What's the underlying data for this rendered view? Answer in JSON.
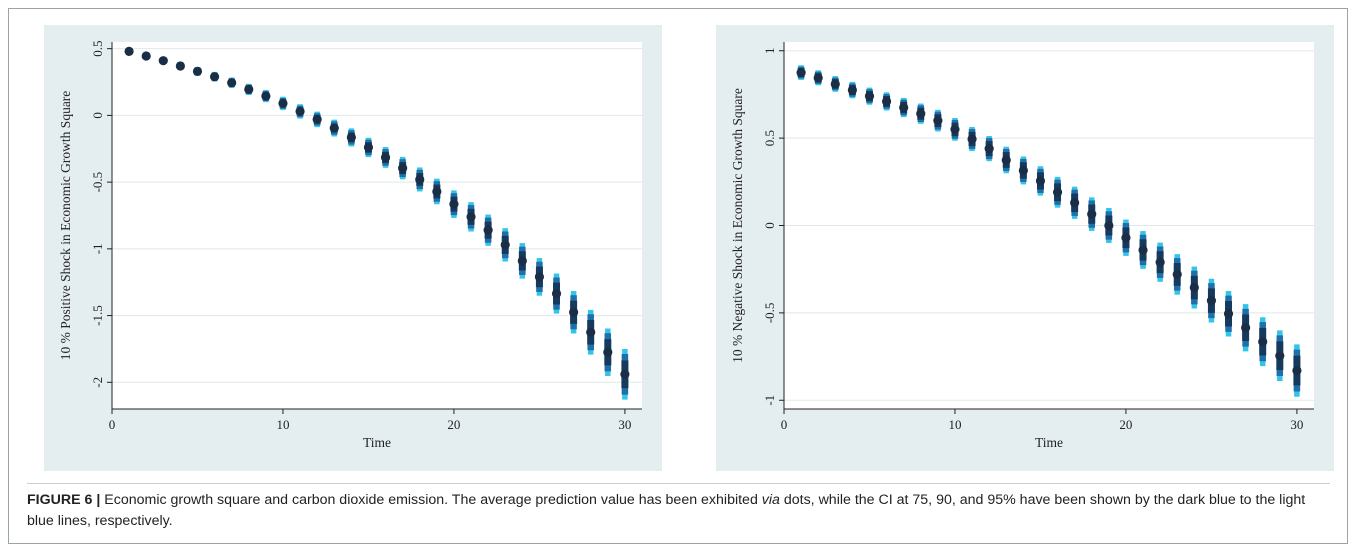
{
  "figure": {
    "label": "FIGURE 6 |",
    "caption_pre": " Economic growth square and carbon dioxide emission. The average prediction value has been exhibited ",
    "caption_italic": "via",
    "caption_post": " dots, while the CI at 75, 90, and 95% have been shown by the dark blue to the light blue lines, respectively."
  },
  "colors": {
    "panel_bg": "#e4eef0",
    "grid": "#ffffff",
    "point": "#1a2e47",
    "ci75": "#16395e",
    "ci90": "#1f6fa8",
    "ci95": "#32c5ea"
  },
  "chart_data": [
    {
      "type": "scatter",
      "title": "",
      "xlabel": "Time",
      "ylabel": "10 % Positive Shock in Economic Growth Square",
      "xlim": [
        0,
        31
      ],
      "ylim": [
        -2.2,
        0.55
      ],
      "xticks": [
        0,
        10,
        20,
        30
      ],
      "yticks": [
        0.5,
        0,
        -0.5,
        -1,
        -1.5,
        -2
      ],
      "ytick_labels": [
        "0.5",
        "0",
        "-0.5",
        "-1",
        "-1.5",
        "-2"
      ],
      "grid": "horizontal",
      "x": [
        1,
        2,
        3,
        4,
        5,
        6,
        7,
        8,
        9,
        10,
        11,
        12,
        13,
        14,
        15,
        16,
        17,
        18,
        19,
        20,
        21,
        22,
        23,
        24,
        25,
        26,
        27,
        28,
        29,
        30
      ],
      "mean": [
        0.48,
        0.445,
        0.41,
        0.37,
        0.33,
        0.29,
        0.245,
        0.195,
        0.145,
        0.09,
        0.03,
        -0.03,
        -0.095,
        -0.165,
        -0.24,
        -0.315,
        -0.395,
        -0.48,
        -0.57,
        -0.665,
        -0.76,
        -0.86,
        -0.97,
        -1.09,
        -1.21,
        -1.335,
        -1.475,
        -1.625,
        -1.775,
        -1.94
      ],
      "ci75": [
        0.015,
        0.015,
        0.016,
        0.017,
        0.018,
        0.019,
        0.021,
        0.023,
        0.025,
        0.027,
        0.029,
        0.031,
        0.033,
        0.036,
        0.039,
        0.042,
        0.045,
        0.048,
        0.052,
        0.056,
        0.06,
        0.064,
        0.068,
        0.072,
        0.077,
        0.082,
        0.087,
        0.092,
        0.098,
        0.104
      ],
      "ci90": [
        0.022,
        0.022,
        0.023,
        0.025,
        0.027,
        0.029,
        0.031,
        0.034,
        0.037,
        0.04,
        0.043,
        0.046,
        0.05,
        0.054,
        0.058,
        0.062,
        0.067,
        0.072,
        0.077,
        0.082,
        0.088,
        0.094,
        0.1,
        0.106,
        0.113,
        0.12,
        0.127,
        0.135,
        0.143,
        0.152
      ],
      "ci95": [
        0.027,
        0.027,
        0.028,
        0.03,
        0.033,
        0.036,
        0.039,
        0.042,
        0.046,
        0.05,
        0.054,
        0.058,
        0.063,
        0.068,
        0.073,
        0.078,
        0.084,
        0.09,
        0.096,
        0.103,
        0.11,
        0.117,
        0.125,
        0.133,
        0.141,
        0.15,
        0.159,
        0.168,
        0.178,
        0.19
      ]
    },
    {
      "type": "scatter",
      "title": "",
      "xlabel": "Time",
      "ylabel": "10 % Negative Shock in Economic Growth Square",
      "xlim": [
        0,
        31
      ],
      "ylim": [
        -1.05,
        1.05
      ],
      "xticks": [
        0,
        10,
        20,
        30
      ],
      "yticks": [
        1,
        0.5,
        0,
        -0.5,
        -1
      ],
      "ytick_labels": [
        "1",
        "0.5",
        "0",
        "-0.5",
        "-1"
      ],
      "grid": "horizontal",
      "x": [
        1,
        2,
        3,
        4,
        5,
        6,
        7,
        8,
        9,
        10,
        11,
        12,
        13,
        14,
        15,
        16,
        17,
        18,
        19,
        20,
        21,
        22,
        23,
        24,
        25,
        26,
        27,
        28,
        29,
        30
      ],
      "mean": [
        0.875,
        0.845,
        0.81,
        0.775,
        0.74,
        0.71,
        0.675,
        0.64,
        0.6,
        0.55,
        0.495,
        0.44,
        0.375,
        0.315,
        0.255,
        0.19,
        0.13,
        0.065,
        0.0,
        -0.07,
        -0.14,
        -0.21,
        -0.28,
        -0.355,
        -0.43,
        -0.505,
        -0.585,
        -0.665,
        -0.745,
        -0.83
      ],
      "ci75": [
        0.025,
        0.026,
        0.027,
        0.028,
        0.029,
        0.031,
        0.033,
        0.035,
        0.037,
        0.039,
        0.041,
        0.043,
        0.045,
        0.047,
        0.049,
        0.051,
        0.053,
        0.055,
        0.057,
        0.059,
        0.061,
        0.063,
        0.065,
        0.067,
        0.07,
        0.073,
        0.076,
        0.079,
        0.082,
        0.085
      ],
      "ci90": [
        0.034,
        0.035,
        0.036,
        0.038,
        0.04,
        0.042,
        0.045,
        0.048,
        0.051,
        0.054,
        0.057,
        0.06,
        0.063,
        0.066,
        0.069,
        0.072,
        0.075,
        0.078,
        0.081,
        0.084,
        0.087,
        0.09,
        0.093,
        0.096,
        0.1,
        0.104,
        0.108,
        0.112,
        0.116,
        0.12
      ],
      "ci95": [
        0.042,
        0.043,
        0.045,
        0.047,
        0.049,
        0.052,
        0.055,
        0.058,
        0.062,
        0.065,
        0.069,
        0.072,
        0.076,
        0.08,
        0.084,
        0.088,
        0.092,
        0.096,
        0.1,
        0.104,
        0.108,
        0.112,
        0.116,
        0.12,
        0.125,
        0.13,
        0.135,
        0.14,
        0.145,
        0.15
      ]
    }
  ]
}
